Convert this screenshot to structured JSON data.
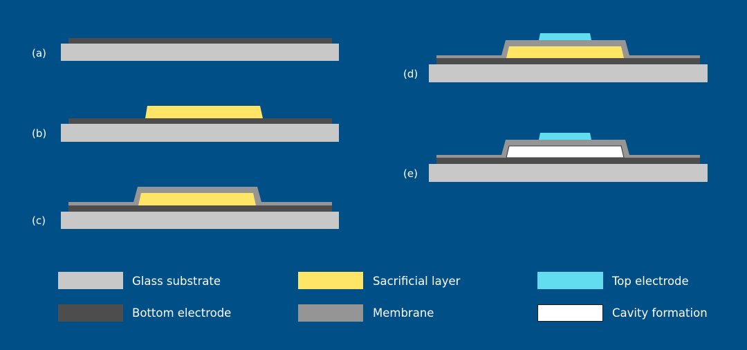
{
  "colors": {
    "background": "#004f86",
    "glass_substrate": "#c8c8c8",
    "bottom_electrode": "#4d4d4d",
    "sacrificial_layer": "#ffe566",
    "membrane": "#959595",
    "top_electrode": "#62dcef",
    "cavity": "#ffffff"
  },
  "steps": {
    "a": "(a)",
    "b": "(b)",
    "c": "(c)",
    "d": "(d)",
    "e": "(e)"
  },
  "legend": [
    {
      "label": "Glass substrate",
      "color": "#c8c8c8"
    },
    {
      "label": "Sacrificial layer",
      "color": "#ffe566"
    },
    {
      "label": "Top electrode",
      "color": "#62dcef"
    },
    {
      "label": "Bottom electrode",
      "color": "#4d4d4d"
    },
    {
      "label": "Membrane",
      "color": "#959595"
    },
    {
      "label": "Cavity formation",
      "color": "#ffffff"
    }
  ]
}
